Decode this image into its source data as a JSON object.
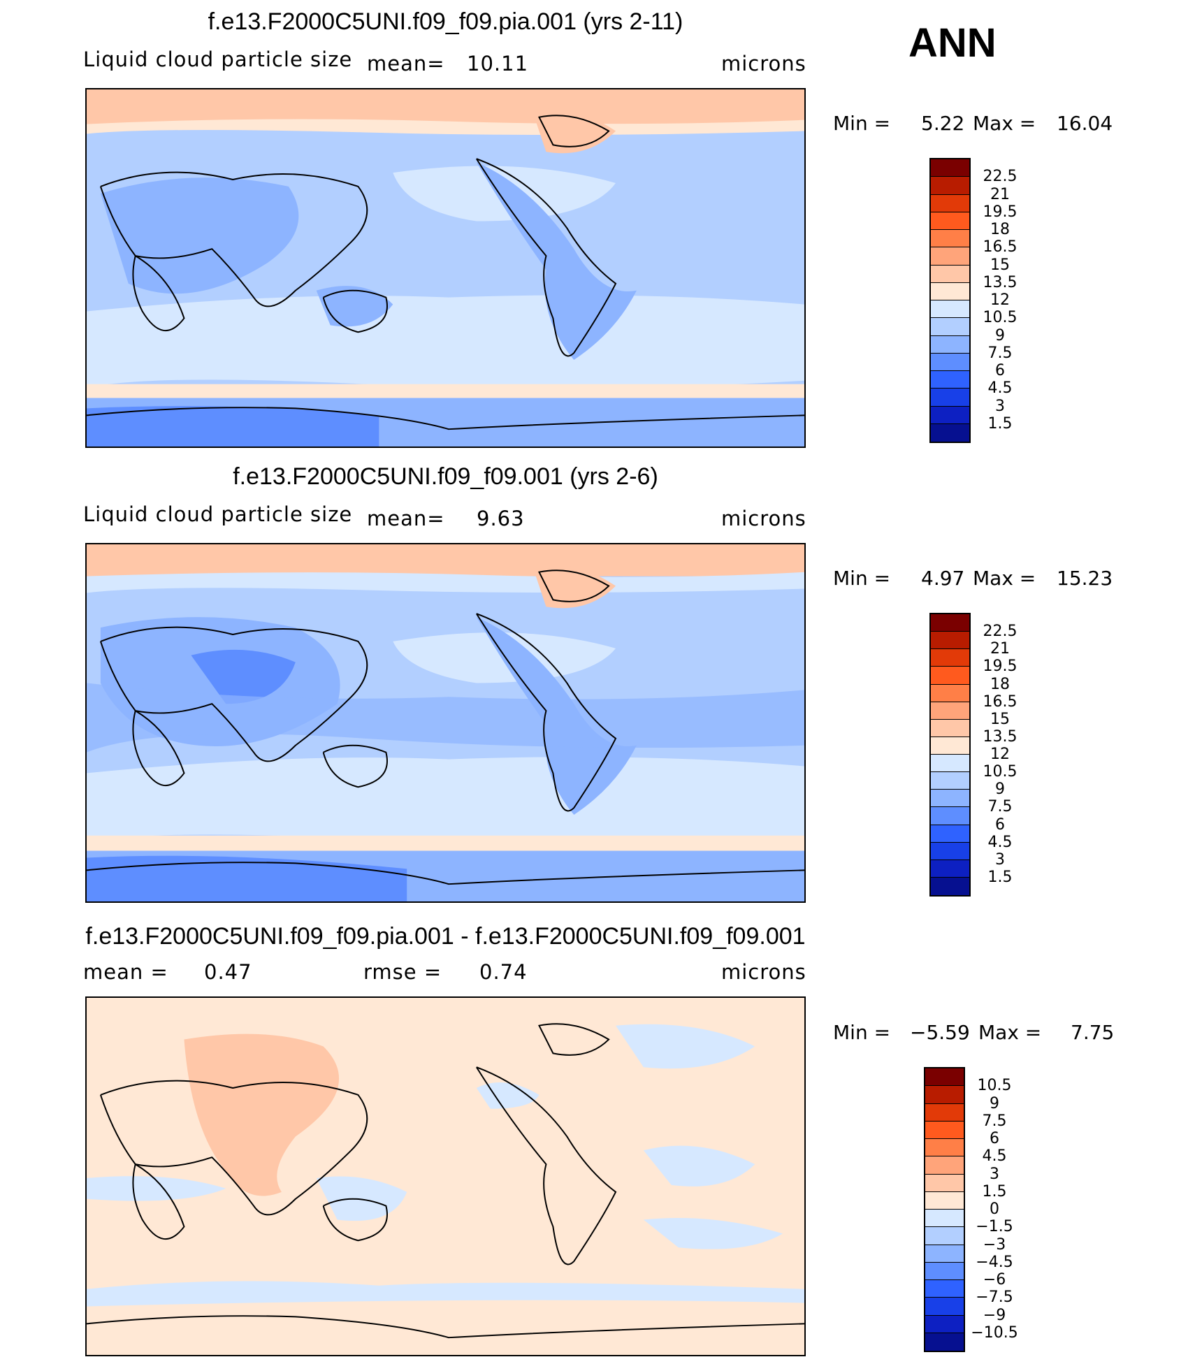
{
  "season": "ANN",
  "panels": [
    {
      "title": "f.e13.F2000C5UNI.f09_f09.pia.001 (yrs 2-11)",
      "variable": "Liquid  cloud  particle  size",
      "stat_label": "mean=",
      "stat_value": "10.11",
      "units": "microns",
      "min_label": "Min  =",
      "min_value": "5.22",
      "max_label": "Max  =",
      "max_value": "16.04"
    },
    {
      "title": "f.e13.F2000C5UNI.f09_f09.001 (yrs 2-6)",
      "variable": "Liquid  cloud  particle  size",
      "stat_label": "mean=",
      "stat_value": "9.63",
      "units": "microns",
      "min_label": "Min  =",
      "min_value": "4.97",
      "max_label": "Max  =",
      "max_value": "15.23"
    },
    {
      "title": "f.e13.F2000C5UNI.f09_f09.pia.001 - f.e13.F2000C5UNI.f09_f09.001",
      "stat_label": "mean  =",
      "stat_value": "0.47",
      "rmse_label": "rmse  =",
      "rmse_value": "0.74",
      "units": "microns",
      "min_label": "Min  =",
      "min_value": "−5.59",
      "max_label": "Max  =",
      "max_value": "7.75"
    }
  ],
  "colorbars": {
    "absolute": {
      "levels": [
        "22.5",
        "21",
        "19.5",
        "18",
        "16.5",
        "15",
        "13.5",
        "12",
        "10.5",
        "9",
        "7.5",
        "6",
        "4.5",
        "3",
        "1.5"
      ],
      "colors": [
        "#7a0000",
        "#b81c00",
        "#e23a08",
        "#ff5a1e",
        "#ff7f47",
        "#ffa47a",
        "#ffc7a8",
        "#ffe8d5",
        "#d6e8ff",
        "#b2cfff",
        "#8db4ff",
        "#5e8eff",
        "#2f62ff",
        "#1840e8",
        "#0d20c2",
        "#061090"
      ]
    },
    "difference": {
      "levels": [
        "10.5",
        "9",
        "7.5",
        "6",
        "4.5",
        "3",
        "1.5",
        "0",
        "−1.5",
        "−3",
        "−4.5",
        "−6",
        "−7.5",
        "−9",
        "−10.5"
      ],
      "colors": [
        "#7a0000",
        "#b81c00",
        "#e23a08",
        "#ff5a1e",
        "#ff7f47",
        "#ffa47a",
        "#ffc7a8",
        "#ffe8d5",
        "#d6e8ff",
        "#b2cfff",
        "#8db4ff",
        "#5e8eff",
        "#2f62ff",
        "#1840e8",
        "#0d20c2",
        "#061090"
      ]
    }
  },
  "chart_data": [
    {
      "type": "heatmap",
      "title": "f.e13.F2000C5UNI.f09_f09.pia.001 (yrs 2-11)",
      "variable": "Liquid cloud particle size",
      "units": "microns",
      "mean": 10.11,
      "min": 5.22,
      "max": 16.04,
      "contour_levels": [
        1.5,
        3,
        4.5,
        6,
        7.5,
        9,
        10.5,
        12,
        13.5,
        15,
        16.5,
        18,
        19.5,
        21,
        22.5
      ]
    },
    {
      "type": "heatmap",
      "title": "f.e13.F2000C5UNI.f09_f09.001 (yrs 2-6)",
      "variable": "Liquid cloud particle size",
      "units": "microns",
      "mean": 9.63,
      "min": 4.97,
      "max": 15.23,
      "contour_levels": [
        1.5,
        3,
        4.5,
        6,
        7.5,
        9,
        10.5,
        12,
        13.5,
        15,
        16.5,
        18,
        19.5,
        21,
        22.5
      ]
    },
    {
      "type": "heatmap",
      "title": "f.e13.F2000C5UNI.f09_f09.pia.001 - f.e13.F2000C5UNI.f09_f09.001",
      "units": "microns",
      "mean": 0.47,
      "rmse": 0.74,
      "min": -5.59,
      "max": 7.75,
      "contour_levels": [
        -10.5,
        -9,
        -7.5,
        -6,
        -4.5,
        -3,
        -1.5,
        0,
        1.5,
        3,
        4.5,
        6,
        7.5,
        9,
        10.5
      ]
    }
  ]
}
